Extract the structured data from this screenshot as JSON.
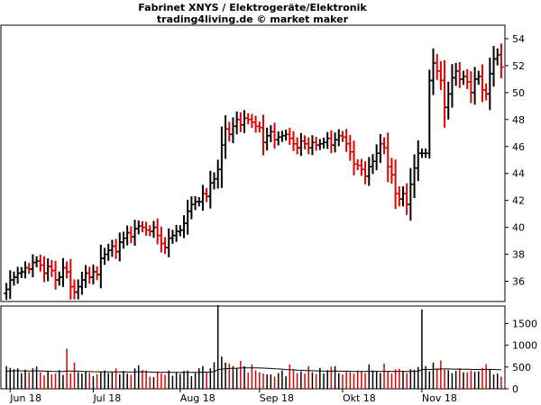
{
  "title": "Fabrinet XNYS / Elektrogeräte/Elektronik",
  "subtitle": "trading4living.de © market maker",
  "colors": {
    "up": "#000000",
    "down": "#e00000",
    "volume_avg": "#000000",
    "frame": "#000000"
  },
  "chart_data": [
    {
      "type": "ohlc",
      "title": "Fabrinet XNYS / Elektrogeräte/Elektronik",
      "subtitle": "trading4living.de © market maker",
      "ylim": [
        34.5,
        55
      ],
      "y_ticks": [
        36,
        38,
        40,
        42,
        44,
        46,
        48,
        50,
        52,
        54
      ],
      "grid": false,
      "x_labels": [
        "Jun 18",
        "Jul 18",
        "Aug 18",
        "Sep 18",
        "Okt 18",
        "Nov 18"
      ],
      "x_label_positions": [
        1,
        23,
        46,
        67,
        89,
        110
      ],
      "n_bars": 132,
      "close": [
        35.4,
        36.1,
        36.3,
        36.6,
        36.7,
        37.0,
        36.9,
        37.4,
        37.5,
        37.2,
        36.6,
        37.1,
        36.8,
        36.1,
        36.3,
        37.0,
        36.7,
        35.6,
        35.2,
        35.6,
        36.1,
        36.6,
        36.3,
        36.7,
        36.5,
        37.7,
        38.0,
        38.3,
        38.6,
        38.2,
        38.9,
        39.2,
        39.6,
        39.3,
        39.9,
        40.1,
        40.0,
        39.8,
        39.7,
        40.0,
        39.4,
        38.8,
        38.5,
        39.2,
        39.4,
        39.7,
        39.8,
        40.3,
        41.2,
        41.7,
        41.9,
        41.9,
        42.5,
        42.3,
        43.3,
        43.6,
        44.3,
        46.1,
        47.3,
        46.9,
        47.5,
        48.0,
        47.6,
        48.1,
        48.0,
        47.8,
        47.5,
        47.4,
        46.3,
        46.8,
        47.1,
        46.5,
        46.7,
        46.8,
        46.9,
        46.6,
        46.2,
        45.9,
        46.4,
        46.2,
        45.9,
        46.3,
        46.1,
        46.2,
        46.3,
        46.6,
        46.1,
        46.5,
        46.8,
        46.7,
        46.2,
        45.6,
        44.7,
        44.6,
        44.3,
        43.8,
        44.5,
        44.9,
        45.5,
        46.2,
        45.9,
        44.5,
        43.9,
        42.5,
        42.1,
        42.5,
        41.7,
        43.2,
        44.4,
        45.5,
        45.5,
        45.5,
        50.9,
        52.2,
        51.6,
        50.9,
        48.9,
        49.9,
        51.1,
        51.6,
        51.0,
        51.2,
        50.8,
        50.0,
        51.0,
        51.2,
        50.2,
        49.9,
        51.4,
        52.5,
        52.8,
        51.9
      ],
      "volume": {
        "ylim": [
          0,
          1900
        ],
        "y_ticks": [
          0,
          500,
          1000,
          1500
        ],
        "values": [
          520,
          480,
          450,
          470,
          360,
          440,
          380,
          470,
          510,
          380,
          310,
          400,
          330,
          350,
          430,
          320,
          920,
          360,
          600,
          380,
          350,
          400,
          370,
          290,
          340,
          390,
          420,
          360,
          380,
          470,
          330,
          410,
          350,
          320,
          470,
          540,
          430,
          420,
          280,
          270,
          400,
          350,
          320,
          420,
          300,
          370,
          340,
          410,
          420,
          290,
          360,
          470,
          520,
          380,
          470,
          610,
          1920,
          740,
          600,
          580,
          520,
          480,
          640,
          520,
          370,
          560,
          420,
          380,
          350,
          330,
          330,
          280,
          360,
          420,
          290,
          560,
          440,
          360,
          400,
          350,
          520,
          380,
          340,
          480,
          350,
          430,
          510,
          520,
          360,
          330,
          420,
          380,
          350,
          420,
          410,
          360,
          560,
          420,
          390,
          360,
          580,
          400,
          350,
          450,
          460,
          410,
          360,
          450,
          440,
          500,
          1820,
          520,
          400,
          600,
          470,
          650,
          440,
          430,
          360,
          410,
          470,
          380,
          380,
          420,
          390,
          400,
          480,
          570,
          450,
          330,
          350,
          280
        ]
      },
      "volume_average": [
        400,
        410,
        412,
        415,
        410,
        412,
        408,
        410,
        413,
        410,
        405,
        405,
        400,
        398,
        398,
        394,
        410,
        405,
        408,
        405,
        400,
        398,
        396,
        392,
        390,
        390,
        390,
        388,
        388,
        390,
        388,
        388,
        387,
        385,
        387,
        390,
        390,
        390,
        385,
        380,
        380,
        378,
        375,
        377,
        375,
        375,
        374,
        376,
        378,
        375,
        375,
        378,
        382,
        382,
        385,
        392,
        440,
        452,
        460,
        466,
        470,
        472,
        478,
        482,
        480,
        482,
        480,
        478,
        474,
        470,
        466,
        460,
        456,
        450,
        442,
        440,
        436,
        430,
        426,
        420,
        418,
        415,
        410,
        410,
        405,
        403,
        405,
        406,
        405,
        402,
        402,
        400,
        398,
        398,
        397,
        396,
        400,
        400,
        400,
        398,
        402,
        400,
        398,
        400,
        401,
        400,
        398,
        400,
        400,
        402,
        440,
        445,
        445,
        450,
        450,
        456,
        456,
        456,
        452,
        452,
        453,
        450,
        448,
        447,
        445,
        443,
        444,
        447,
        447,
        443,
        440,
        435
      ]
    }
  ]
}
